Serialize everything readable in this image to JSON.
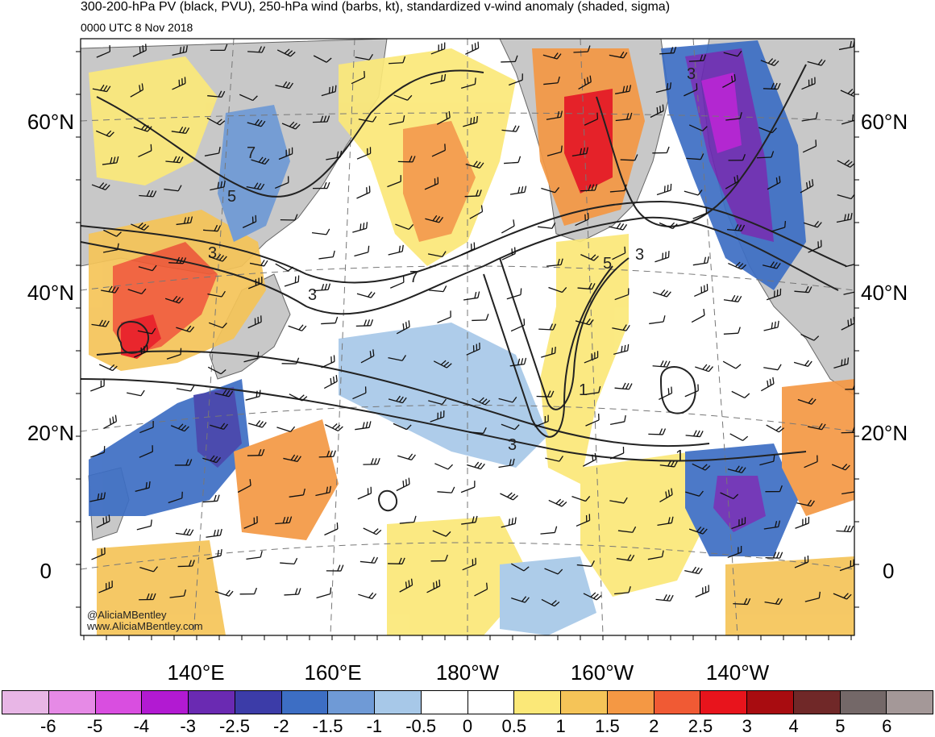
{
  "header": {
    "title": "300-200-hPa PV (black, PVU), 250-hPa wind (barbs, kt), standardized v-wind anomaly (shaded, sigma)",
    "valid_time": "0000 UTC 8 Nov 2018"
  },
  "map": {
    "lat_labels": [
      "60°N",
      "40°N",
      "20°N",
      "0"
    ],
    "lon_labels": [
      "140°E",
      "160°E",
      "180°W",
      "160°W",
      "140°W"
    ],
    "pv_contour_labels": [
      "3",
      "5",
      "7",
      "3",
      "7",
      "3",
      "5",
      "3",
      "1",
      "3",
      "1"
    ],
    "colors": {
      "land": "#c8c8c8",
      "ocean": "#ffffff",
      "contour": "#222222"
    }
  },
  "colorbar": {
    "labels": [
      "-6",
      "-5",
      "-4",
      "-3",
      "-2.5",
      "-2",
      "-1.5",
      "-1",
      "-0.5",
      "0",
      "0.5",
      "1",
      "1.5",
      "2",
      "2.5",
      "3",
      "4",
      "5",
      "6"
    ],
    "colors": [
      "#e8b6e6",
      "#e68ae6",
      "#d94ee0",
      "#b21ad2",
      "#6a2ab2",
      "#3c3ca8",
      "#3d6ec4",
      "#6f9ad6",
      "#a7c8e8",
      "#ffffff",
      "#ffffff",
      "#fbe878",
      "#f5c458",
      "#f49844",
      "#f05a34",
      "#e8141c",
      "#a80c10",
      "#702828",
      "#746868",
      "#a49898"
    ]
  },
  "credits": {
    "handle": "@AliciaMBentley",
    "website": "www.AliciaMBentley.com"
  }
}
